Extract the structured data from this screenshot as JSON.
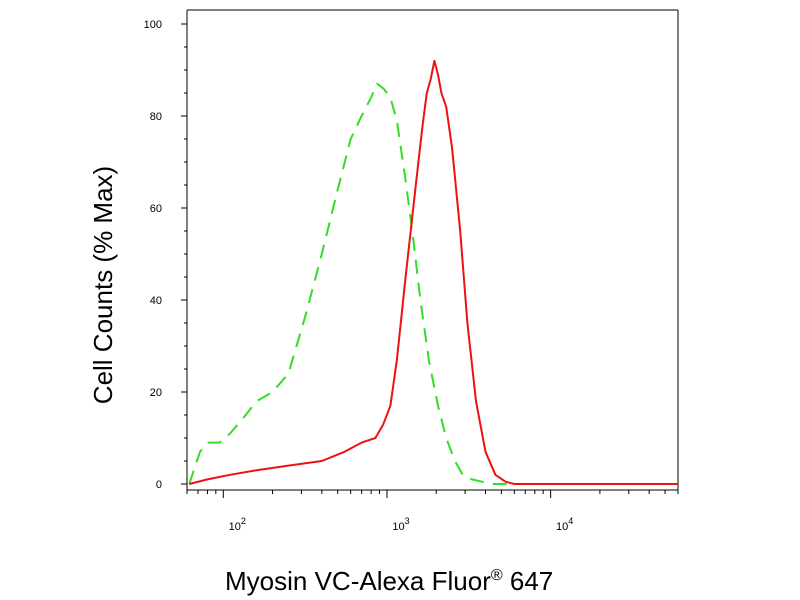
{
  "chart_data": {
    "type": "line",
    "title": "",
    "xlabel": "Myosin VC-Alexa Fluor",
    "xlabel_superscript": "®",
    "xlabel_suffix": " 647",
    "ylabel": "Cell Counts (% Max)",
    "xscale": "log",
    "xlim": [
      60,
      60000
    ],
    "ylim": [
      0,
      100
    ],
    "y_ticks": [
      0,
      20,
      40,
      60,
      80,
      100
    ],
    "x_ticks": [
      {
        "value": 100,
        "base": "10",
        "exp": "2"
      },
      {
        "value": 1000,
        "base": "10",
        "exp": "3"
      },
      {
        "value": 10000,
        "base": "10",
        "exp": "4"
      }
    ],
    "grid": false,
    "legend": "none",
    "series": [
      {
        "style": "dashed",
        "color": "#33dd22",
        "x": [
          62,
          66,
          72,
          80,
          95,
          110,
          130,
          160,
          200,
          250,
          320,
          400,
          500,
          600,
          700,
          800,
          870,
          950,
          1050,
          1150,
          1300,
          1450,
          1600,
          1800,
          2050,
          2300,
          2600,
          2900,
          3300,
          3800,
          4500,
          6000
        ],
        "y": [
          0,
          3,
          7,
          9,
          9,
          11,
          14,
          18,
          20,
          24,
          37,
          50,
          64,
          75,
          80,
          84,
          87,
          86,
          84,
          79,
          66,
          53,
          40,
          27,
          17,
          10,
          5,
          2,
          1,
          0.5,
          0,
          0
        ]
      },
      {
        "style": "solid",
        "color": "#ee1111",
        "x": [
          62,
          80,
          110,
          160,
          250,
          400,
          550,
          700,
          850,
          950,
          1050,
          1150,
          1300,
          1500,
          1650,
          1750,
          1850,
          1950,
          2050,
          2150,
          2300,
          2500,
          2800,
          3100,
          3500,
          4000,
          4600,
          5300,
          6000,
          60000
        ],
        "y": [
          0,
          1,
          2,
          3,
          4,
          5,
          7,
          9,
          10,
          13,
          17,
          27,
          45,
          65,
          78,
          85,
          88,
          92,
          89,
          85,
          82,
          73,
          55,
          35,
          18,
          7,
          2,
          0.5,
          0,
          0
        ]
      }
    ]
  }
}
